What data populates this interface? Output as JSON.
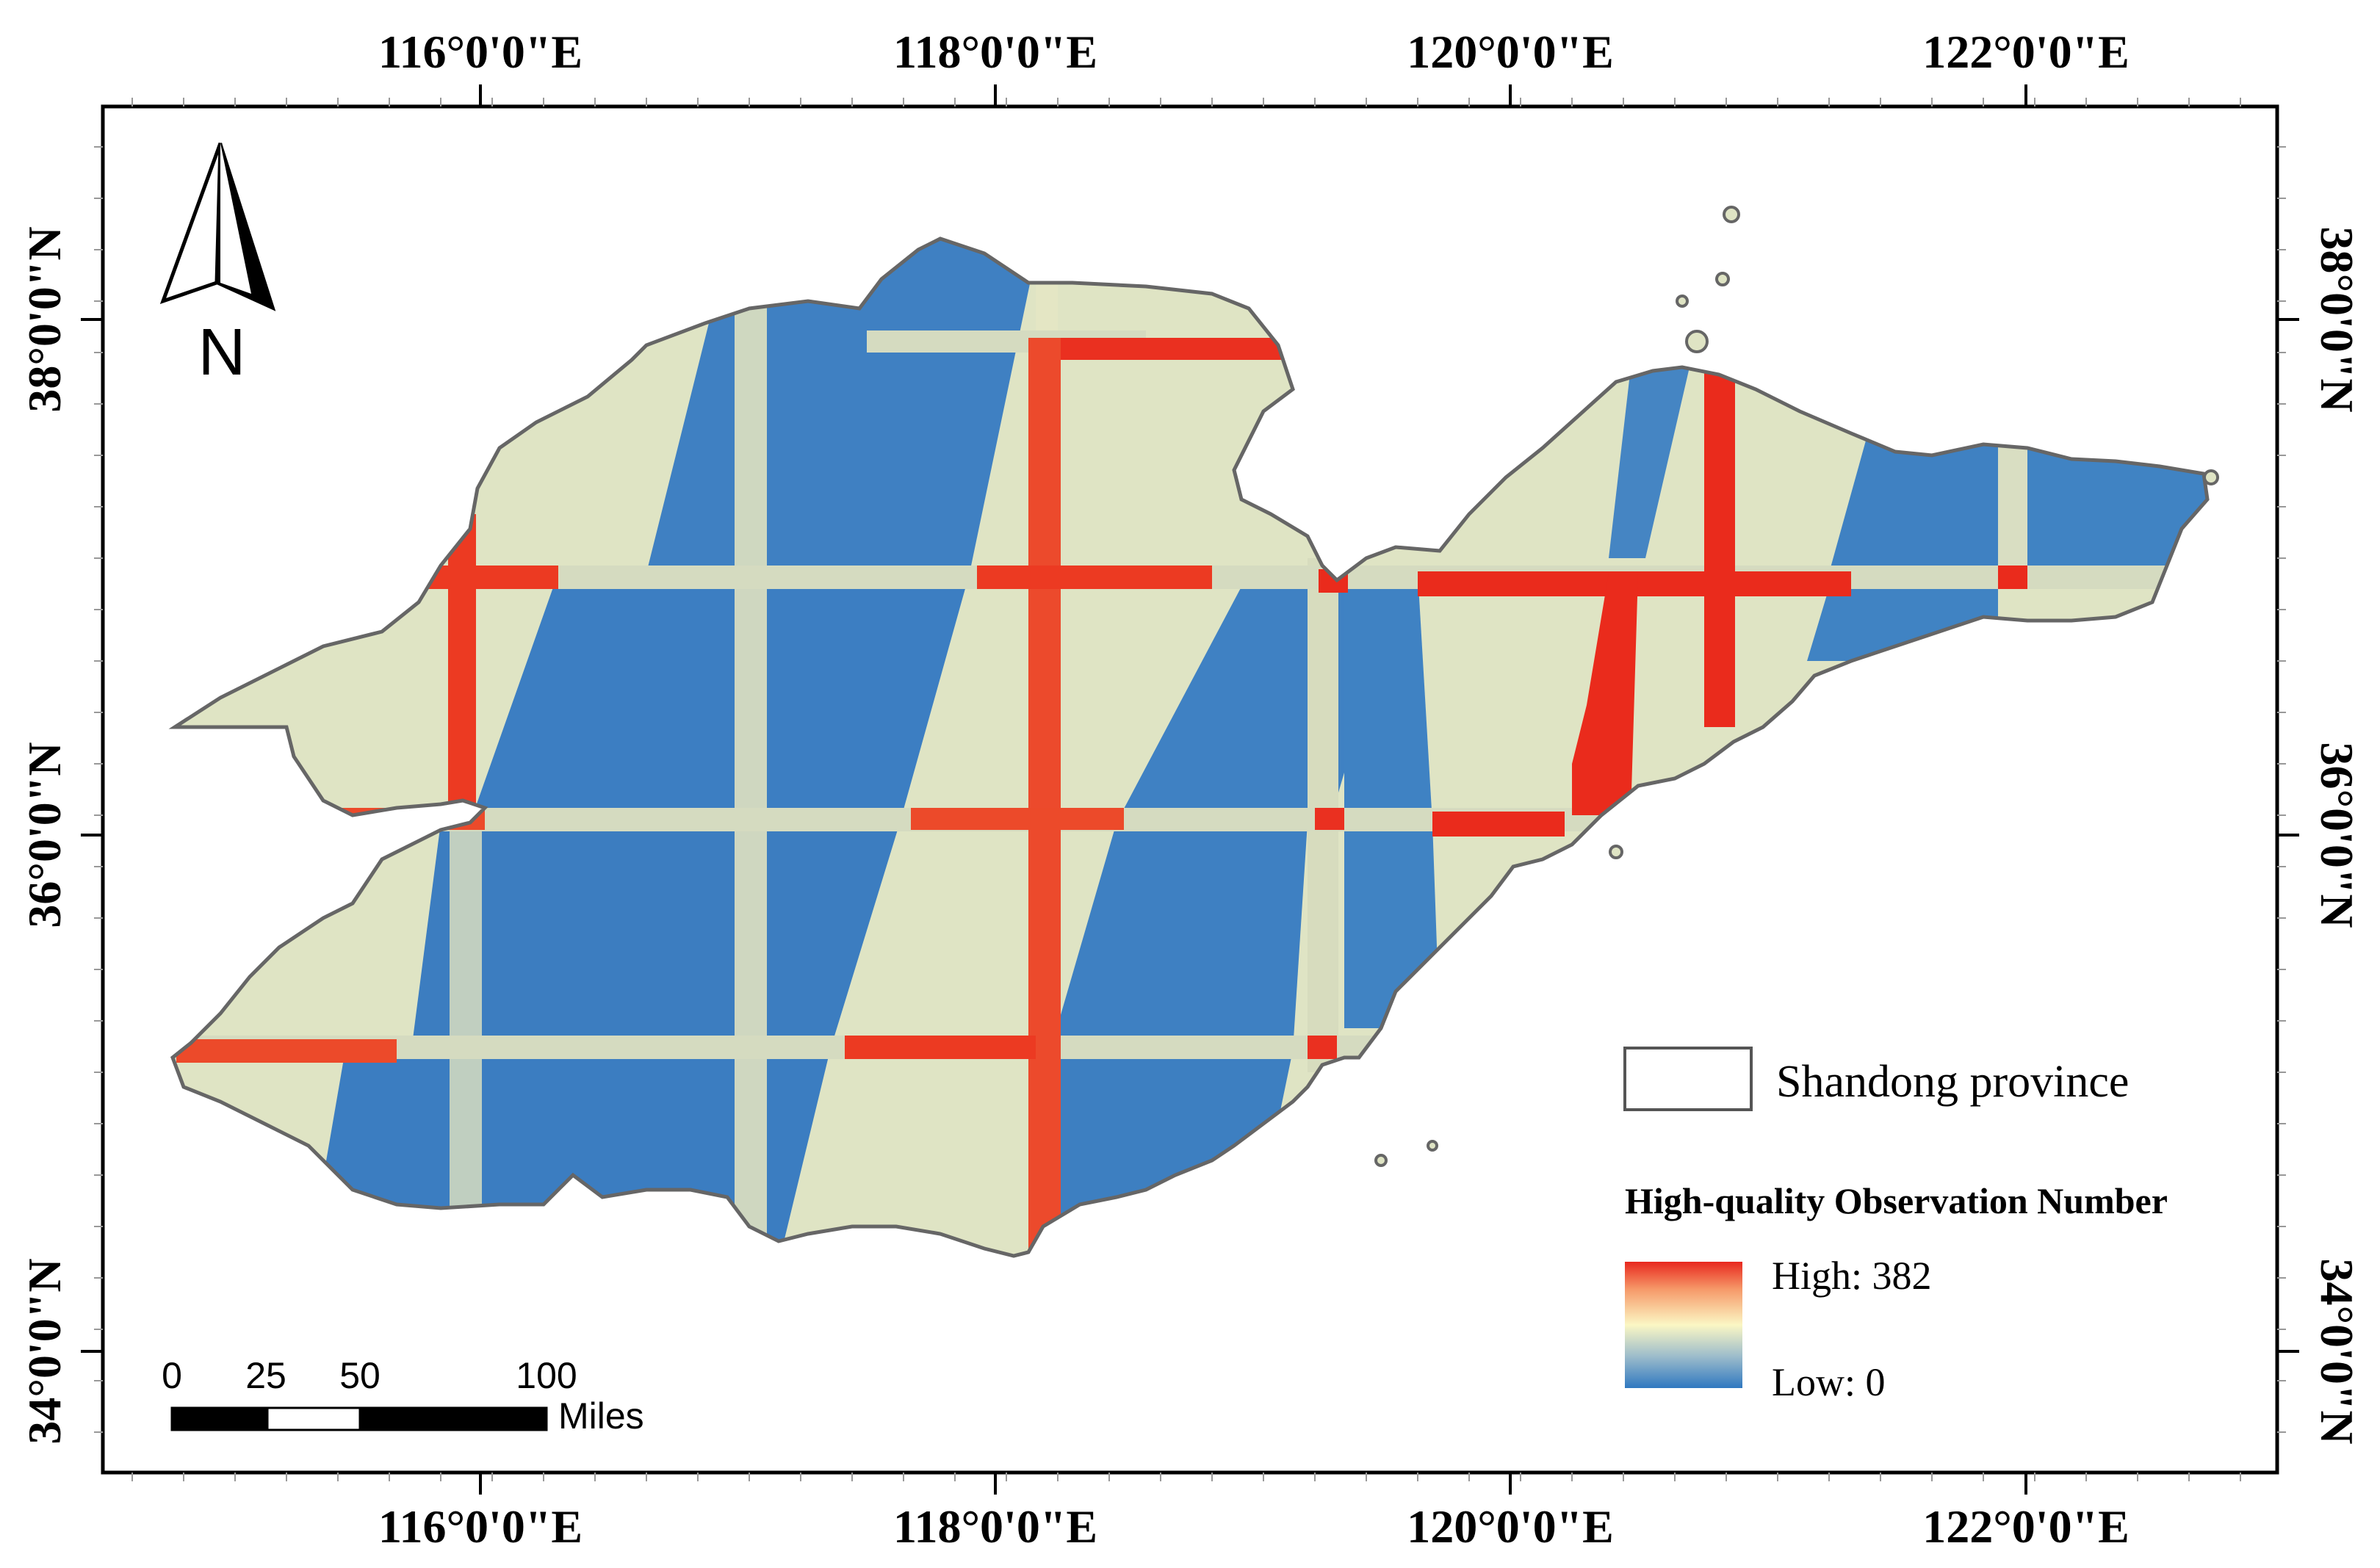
{
  "graticule": {
    "lon_labels": [
      "116°0'0\"E",
      "118°0'0\"E",
      "120°0'0\"E",
      "122°0'0\"E"
    ],
    "lat_labels": [
      "38°0'0\"N",
      "36°0'0\"N",
      "34°0'0\"N"
    ]
  },
  "north_arrow": {
    "label": "N"
  },
  "legend": {
    "boundary_label": "Shandong province",
    "title": "High-quality Observation Number",
    "high_label": "High: 382",
    "low_label": "Low: 0",
    "ramp_colors": [
      "#e8281e",
      "#f4a070",
      "#fbf7c4",
      "#9fbcc9",
      "#2f78c0"
    ]
  },
  "scale_bar": {
    "ticks": [
      "0",
      "25",
      "50",
      "100"
    ],
    "unit": "Miles"
  },
  "colors": {
    "low": "#3a7fc2",
    "mid": "#dfe4c4",
    "high": "#ea2b1c",
    "outline": "#666666"
  }
}
